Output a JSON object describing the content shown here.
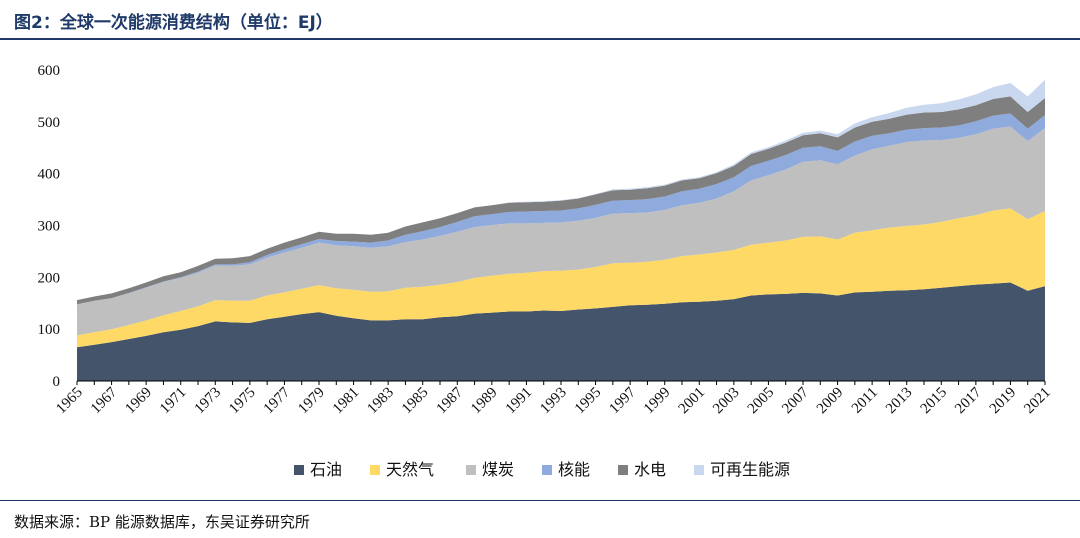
{
  "header": {
    "title": "图2：全球一次能源消费结构（单位：EJ）"
  },
  "footer": {
    "source": "数据来源：BP 能源数据库，东吴证券研究所"
  },
  "chart_data": {
    "type": "area",
    "stacked": true,
    "title": "",
    "xlabel": "",
    "ylabel": "",
    "ylim": [
      0,
      600
    ],
    "yticks": [
      0,
      100,
      200,
      300,
      400,
      500,
      600
    ],
    "x_tick_labels": [
      "1965",
      "1967",
      "1969",
      "1971",
      "1973",
      "1975",
      "1977",
      "1979",
      "1981",
      "1983",
      "1985",
      "1987",
      "1989",
      "1991",
      "1993",
      "1995",
      "1997",
      "1999",
      "2001",
      "2003",
      "2005",
      "2007",
      "2009",
      "2011",
      "2013",
      "2015",
      "2017",
      "2019",
      "2021"
    ],
    "legend_position": "bottom",
    "grid": false,
    "x": [
      1965,
      1966,
      1967,
      1968,
      1969,
      1970,
      1971,
      1972,
      1973,
      1974,
      1975,
      1976,
      1977,
      1978,
      1979,
      1980,
      1981,
      1982,
      1983,
      1984,
      1985,
      1986,
      1987,
      1988,
      1989,
      1990,
      1991,
      1992,
      1993,
      1994,
      1995,
      1996,
      1997,
      1998,
      1999,
      2000,
      2001,
      2002,
      2003,
      2004,
      2005,
      2006,
      2007,
      2008,
      2009,
      2010,
      2011,
      2012,
      2013,
      2014,
      2015,
      2016,
      2017,
      2018,
      2019,
      2020,
      2021
    ],
    "series": [
      {
        "name": "石油",
        "color": "#44546a",
        "values": [
          65,
          70,
          75,
          81,
          87,
          94,
          99,
          106,
          115,
          113,
          112,
          119,
          124,
          129,
          133,
          126,
          121,
          117,
          117,
          119,
          119,
          123,
          125,
          130,
          132,
          134,
          134,
          136,
          135,
          138,
          140,
          143,
          146,
          147,
          149,
          152,
          153,
          155,
          158,
          165,
          167,
          168,
          170,
          169,
          165,
          171,
          172,
          174,
          175,
          177,
          180,
          183,
          186,
          188,
          190,
          174,
          183
        ]
      },
      {
        "name": "天然气",
        "color": "#ffd966",
        "values": [
          23,
          24,
          25,
          27,
          30,
          33,
          36,
          38,
          41,
          42,
          43,
          46,
          47,
          49,
          52,
          53,
          55,
          55,
          56,
          61,
          63,
          63,
          66,
          69,
          71,
          73,
          75,
          76,
          78,
          77,
          80,
          84,
          82,
          83,
          85,
          89,
          91,
          93,
          95,
          98,
          100,
          103,
          108,
          110,
          108,
          115,
          119,
          122,
          124,
          125,
          127,
          131,
          134,
          141,
          143,
          138,
          145
        ]
      },
      {
        "name": "煤炭",
        "color": "#bfbfbf",
        "values": [
          60,
          61,
          60,
          61,
          63,
          64,
          64,
          65,
          67,
          67,
          70,
          73,
          77,
          79,
          82,
          83,
          84,
          85,
          87,
          88,
          91,
          94,
          97,
          98,
          98,
          97,
          95,
          93,
          93,
          94,
          95,
          96,
          96,
          95,
          96,
          98,
          100,
          104,
          113,
          124,
          130,
          137,
          145,
          147,
          145,
          149,
          156,
          158,
          162,
          162,
          158,
          155,
          156,
          158,
          158,
          151,
          160
        ]
      },
      {
        "name": "核能",
        "color": "#8faadc",
        "values": [
          0,
          0,
          0,
          1,
          1,
          1,
          1,
          2,
          2,
          3,
          4,
          5,
          6,
          7,
          7,
          8,
          9,
          10,
          11,
          14,
          16,
          17,
          19,
          21,
          21,
          22,
          23,
          23,
          23,
          24,
          25,
          25,
          25,
          26,
          26,
          27,
          27,
          28,
          27,
          28,
          28,
          28,
          27,
          27,
          26,
          27,
          26,
          24,
          24,
          24,
          24,
          24,
          25,
          25,
          25,
          24,
          25
        ]
      },
      {
        "name": "水电",
        "color": "#7f7f7f",
        "values": [
          8,
          8,
          9,
          9,
          9,
          10,
          10,
          11,
          11,
          12,
          12,
          12,
          13,
          13,
          14,
          14,
          15,
          15,
          15,
          16,
          17,
          17,
          17,
          17,
          17,
          18,
          18,
          18,
          19,
          19,
          20,
          20,
          20,
          21,
          21,
          21,
          20,
          21,
          22,
          23,
          23,
          24,
          24,
          25,
          26,
          27,
          27,
          28,
          29,
          30,
          30,
          31,
          31,
          32,
          33,
          32,
          33
        ]
      },
      {
        "name": "可再生能源",
        "color": "#c9d8ee",
        "values": [
          0,
          0,
          0,
          0,
          0,
          0,
          0,
          0,
          0,
          0,
          0,
          0,
          0,
          0,
          0,
          0,
          0,
          0,
          0,
          0,
          0,
          0,
          0,
          0,
          0,
          1,
          1,
          1,
          1,
          1,
          1,
          2,
          2,
          2,
          2,
          2,
          2,
          2,
          3,
          3,
          3,
          4,
          5,
          5,
          6,
          8,
          9,
          11,
          13,
          15,
          17,
          19,
          21,
          23,
          26,
          30,
          35
        ]
      }
    ]
  }
}
